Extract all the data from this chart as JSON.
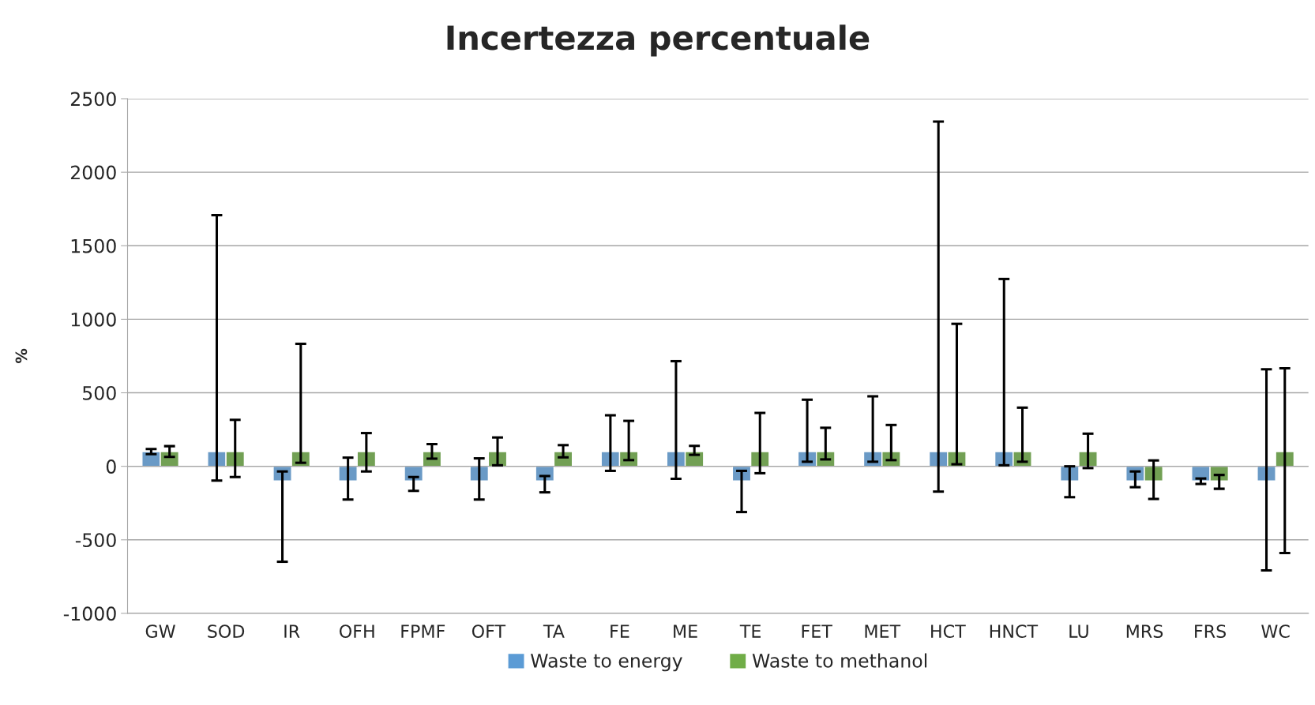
{
  "chart_data": {
    "type": "bar",
    "title": "Incertezza percentuale",
    "ylabel": "%",
    "categories": [
      "GW",
      "SOD",
      "IR",
      "OFH",
      "FPMF",
      "OFT",
      "TA",
      "FE",
      "ME",
      "TE",
      "FET",
      "MET",
      "HCT",
      "HNCT",
      "LU",
      "MRS",
      "FRS",
      "WC"
    ],
    "series": [
      {
        "name": "Waste to energy",
        "color": "#5b9bd5",
        "values": [
          100,
          100,
          -100,
          -100,
          -100,
          -100,
          -100,
          100,
          100,
          -100,
          100,
          100,
          100,
          100,
          -100,
          -100,
          -100,
          -100
        ],
        "errors": [
          [
            83,
            118
          ],
          [
            -97,
            1708
          ],
          [
            -649,
            -35
          ],
          [
            -226,
            59
          ],
          [
            -167,
            -73
          ],
          [
            -226,
            54
          ],
          [
            -177,
            -66
          ],
          [
            -31,
            347
          ],
          [
            -85,
            715
          ],
          [
            -311,
            -31
          ],
          [
            31,
            453
          ],
          [
            31,
            476
          ],
          [
            -172,
            2344
          ],
          [
            7,
            1274
          ],
          [
            -210,
            0
          ],
          [
            -142,
            -35
          ],
          [
            -120,
            -83
          ],
          [
            -708,
            660
          ]
        ]
      },
      {
        "name": "Waste to methanol",
        "color": "#70ad47",
        "values": [
          100,
          100,
          100,
          100,
          100,
          100,
          100,
          100,
          100,
          100,
          100,
          100,
          100,
          100,
          100,
          -100,
          -100,
          100
        ],
        "errors": [
          [
            64,
            137
          ],
          [
            -73,
            316
          ],
          [
            24,
            833
          ],
          [
            -35,
            226
          ],
          [
            52,
            151
          ],
          [
            7,
            196
          ],
          [
            61,
            144
          ],
          [
            42,
            309
          ],
          [
            78,
            139
          ],
          [
            -47,
            363
          ],
          [
            47,
            262
          ],
          [
            42,
            281
          ],
          [
            14,
            969
          ],
          [
            31,
            399
          ],
          [
            -12,
            222
          ],
          [
            -222,
            40
          ],
          [
            -153,
            -59
          ],
          [
            -590,
            667
          ]
        ]
      }
    ],
    "ylim": [
      -1000,
      2500
    ],
    "yticks": [
      -1000,
      -500,
      0,
      500,
      1000,
      1500,
      2000,
      2500
    ],
    "grid": "y",
    "legend": "bottom"
  }
}
